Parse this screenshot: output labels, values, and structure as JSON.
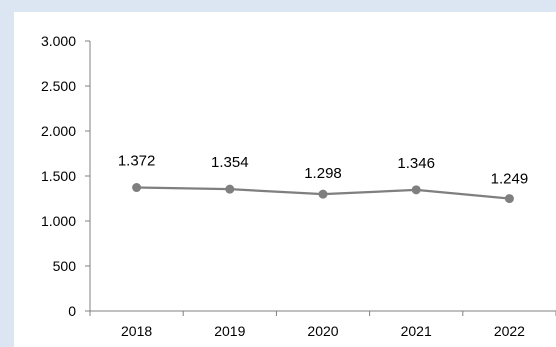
{
  "chart_data": {
    "type": "line",
    "categories": [
      "2018",
      "2019",
      "2020",
      "2021",
      "2022"
    ],
    "values": [
      1372,
      1354,
      1298,
      1346,
      1249
    ],
    "data_labels": [
      "1.372",
      "1.354",
      "1.298",
      "1.346",
      "1.249"
    ],
    "y_ticks": [
      0,
      500,
      1000,
      1500,
      2000,
      2500,
      3000
    ],
    "y_tick_labels": [
      "0",
      "500",
      "1.000",
      "1.500",
      "2.000",
      "2.500",
      "3.000"
    ],
    "ylim": [
      0,
      3000
    ],
    "grid": false,
    "legend": "none",
    "colors": {
      "line": "#7f7f7f",
      "marker": "#7f7f7f",
      "axis": "#808080",
      "page_background": "#dce6f2",
      "plot_background": "#ffffff"
    }
  }
}
